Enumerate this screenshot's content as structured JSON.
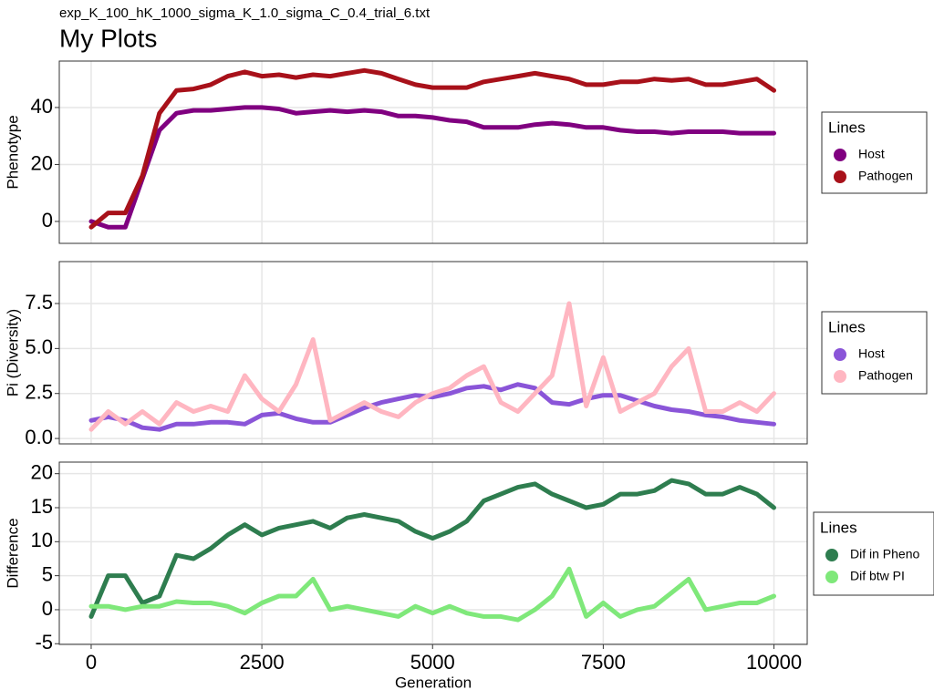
{
  "chart_data": [
    {
      "type": "line",
      "subtitle": "exp_K_100_hK_1000_sigma_K_1.0_sigma_C_0.4_trial_6.txt",
      "title": "My Plots",
      "y_label": "Phenotype",
      "legend_title": "Lines",
      "grid": true,
      "xlim": [
        -467,
        10487
      ],
      "xticks": [
        0,
        2500,
        5000,
        7500,
        10000
      ],
      "ylim": [
        -7.7,
        56.3
      ],
      "yticks": [
        0,
        20,
        40
      ],
      "x": [
        0,
        250,
        500,
        750,
        1000,
        1250,
        1500,
        1750,
        2000,
        2250,
        2500,
        2750,
        3000,
        3250,
        3500,
        3750,
        4000,
        4250,
        4500,
        4750,
        5000,
        5250,
        5500,
        5750,
        6000,
        6250,
        6500,
        6750,
        7000,
        7250,
        7500,
        7750,
        8000,
        8250,
        8500,
        8750,
        9000,
        9250,
        9500,
        9750,
        10000
      ],
      "series": [
        {
          "name": "Host",
          "color": "#800080",
          "values": [
            0,
            -2,
            -2,
            15,
            32,
            38,
            39,
            39,
            39.5,
            40,
            40,
            39.5,
            38,
            38.5,
            39,
            38.5,
            39,
            38.5,
            37,
            37,
            36.5,
            35.5,
            35,
            33,
            33,
            33,
            34,
            34.5,
            34,
            33,
            33,
            32,
            31.5,
            31.5,
            31,
            31.5,
            31.5,
            31.5,
            31,
            31,
            31
          ]
        },
        {
          "name": "Pathogen",
          "color": "#a8111a",
          "values": [
            -2,
            3,
            3,
            16,
            38,
            46,
            46.5,
            48,
            51,
            52.5,
            51,
            51.5,
            50.5,
            51.5,
            51,
            52,
            53,
            52,
            50,
            48,
            47,
            47,
            47,
            49,
            50,
            51,
            52,
            51,
            50,
            48,
            48,
            49,
            49,
            50,
            49.5,
            50,
            48,
            48,
            49,
            50,
            46
          ]
        }
      ]
    },
    {
      "type": "line",
      "y_label": "Pi (Diversity)",
      "legend_title": "Lines",
      "grid": true,
      "xlim": [
        -467,
        10487
      ],
      "xticks": [
        0,
        2500,
        5000,
        7500,
        10000
      ],
      "ylim": [
        -0.3,
        9.83
      ],
      "yticks": [
        {
          "value": 0,
          "label": "0.0"
        },
        {
          "value": 2.5,
          "label": "2.5"
        },
        {
          "value": 5,
          "label": "5.0"
        },
        {
          "value": 7.5,
          "label": "7.5"
        }
      ],
      "x": [
        0,
        250,
        500,
        750,
        1000,
        1250,
        1500,
        1750,
        2000,
        2250,
        2500,
        2750,
        3000,
        3250,
        3500,
        3750,
        4000,
        4250,
        4500,
        4750,
        5000,
        5250,
        5500,
        5750,
        6000,
        6250,
        6500,
        6750,
        7000,
        7250,
        7500,
        7750,
        8000,
        8250,
        8500,
        8750,
        9000,
        9250,
        9500,
        9750,
        10000
      ],
      "series": [
        {
          "name": "Host",
          "color": "#8a55d8",
          "values": [
            1.0,
            1.2,
            1.0,
            0.6,
            0.5,
            0.8,
            0.8,
            0.9,
            0.9,
            0.8,
            1.3,
            1.4,
            1.1,
            0.9,
            0.9,
            1.3,
            1.7,
            2.0,
            2.2,
            2.4,
            2.3,
            2.5,
            2.8,
            2.9,
            2.7,
            3.0,
            2.8,
            2.0,
            1.9,
            2.2,
            2.4,
            2.4,
            2.1,
            1.8,
            1.6,
            1.5,
            1.3,
            1.2,
            1.0,
            0.9,
            0.8
          ]
        },
        {
          "name": "Pathogen",
          "color": "#ffb6c1",
          "values": [
            0.5,
            1.5,
            0.8,
            1.5,
            0.8,
            2.0,
            1.5,
            1.8,
            1.5,
            3.5,
            2.2,
            1.5,
            3.0,
            5.5,
            1.0,
            1.5,
            2.0,
            1.5,
            1.2,
            2.0,
            2.5,
            2.8,
            3.5,
            4.0,
            2.0,
            1.5,
            2.5,
            3.5,
            7.5,
            1.8,
            4.5,
            1.5,
            2.0,
            2.5,
            4.0,
            5.0,
            1.5,
            1.5,
            2.0,
            1.5,
            2.5
          ]
        }
      ]
    },
    {
      "type": "line",
      "y_label": "Difference",
      "x_label": "Generation",
      "legend_title": "Lines",
      "grid": true,
      "xlim": [
        -467,
        10487
      ],
      "xticks": [
        0,
        2500,
        5000,
        7500,
        10000
      ],
      "ylim": [
        -5.1,
        21.7
      ],
      "yticks": [
        -5,
        0,
        5,
        10,
        15,
        20
      ],
      "x": [
        0,
        250,
        500,
        750,
        1000,
        1250,
        1500,
        1750,
        2000,
        2250,
        2500,
        2750,
        3000,
        3250,
        3500,
        3750,
        4000,
        4250,
        4500,
        4750,
        5000,
        5250,
        5500,
        5750,
        6000,
        6250,
        6500,
        6750,
        7000,
        7250,
        7500,
        7750,
        8000,
        8250,
        8500,
        8750,
        9000,
        9250,
        9500,
        9750,
        10000
      ],
      "series": [
        {
          "name": "Dif in Pheno",
          "color": "#2e7d4f",
          "values": [
            -1,
            5,
            5,
            1,
            2,
            8,
            7.5,
            9,
            11,
            12.5,
            11,
            12,
            12.5,
            13,
            12,
            13.5,
            14,
            13.5,
            13,
            11.5,
            10.5,
            11.5,
            13,
            16,
            17,
            18,
            18.5,
            17,
            16,
            15,
            15.5,
            17,
            17,
            17.5,
            19,
            18.5,
            17,
            17,
            18,
            17,
            15
          ]
        },
        {
          "name": "Dif btw PI",
          "color": "#7fe87a",
          "values": [
            0.5,
            0.5,
            0,
            0.5,
            0.5,
            1.2,
            1.0,
            1.0,
            0.5,
            -0.5,
            1.0,
            2.0,
            2.0,
            4.5,
            0,
            0.5,
            0,
            -0.5,
            -1.0,
            0.5,
            -0.5,
            0.5,
            -0.5,
            -1.0,
            -1.0,
            -1.5,
            0,
            2.0,
            6.0,
            -1.0,
            1.0,
            -1.0,
            0,
            0.5,
            2.5,
            4.5,
            0,
            0.5,
            1.0,
            1.0,
            2.0
          ]
        }
      ]
    }
  ]
}
